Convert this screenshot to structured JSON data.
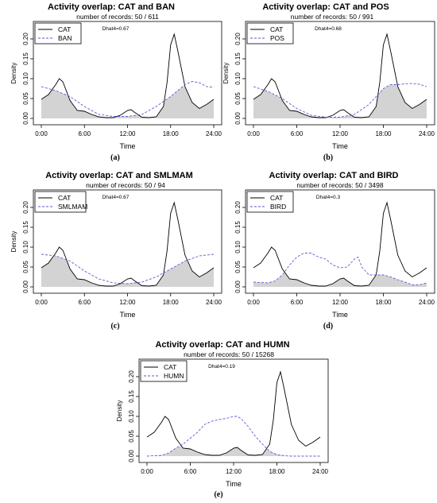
{
  "chart_data": [
    {
      "type": "area",
      "title": "Activity overlap:  CAT and BAN",
      "subtitle": "number of records: 50 / 611",
      "annotation": "Dhat4=0.67",
      "xlabel": "Time",
      "ylabel": "Density",
      "caption": "(a)",
      "x_ticks": [
        "0:00",
        "6:00",
        "12:00",
        "18:00",
        "24:00"
      ],
      "y_ticks": [
        "0.00",
        "0.05",
        "0.10",
        "0.15",
        "0.20"
      ],
      "xlim": [
        0,
        24
      ],
      "ylim": [
        0,
        0.22
      ],
      "legend": "top-left",
      "overlap_shaded": true,
      "series": [
        {
          "name": "CAT",
          "color": "#000000",
          "style": "solid",
          "x": [
            0,
            1,
            2,
            2.5,
            3,
            4,
            5,
            6,
            7,
            8,
            9,
            10,
            11,
            12,
            12.5,
            13,
            14,
            15,
            16,
            17,
            17.5,
            18,
            18.5,
            19,
            20,
            21,
            22,
            23,
            24
          ],
          "values": [
            0.048,
            0.06,
            0.085,
            0.1,
            0.092,
            0.045,
            0.02,
            0.018,
            0.01,
            0.004,
            0.002,
            0.002,
            0.008,
            0.02,
            0.022,
            0.015,
            0.003,
            0.002,
            0.004,
            0.03,
            0.09,
            0.185,
            0.212,
            0.17,
            0.08,
            0.04,
            0.025,
            0.035,
            0.048
          ]
        },
        {
          "name": "BAN",
          "color": "#5a5ad6",
          "style": "dashed",
          "x": [
            0,
            2,
            4,
            6,
            8,
            10,
            12,
            14,
            16,
            18,
            19,
            20,
            21,
            22,
            23,
            24
          ],
          "values": [
            0.08,
            0.07,
            0.055,
            0.03,
            0.01,
            0.005,
            0.005,
            0.01,
            0.03,
            0.055,
            0.07,
            0.085,
            0.093,
            0.09,
            0.08,
            0.078
          ]
        }
      ]
    },
    {
      "type": "area",
      "title": "Activity overlap:  CAT and POS",
      "subtitle": "number of records: 50 / 991",
      "annotation": "Dhat4=0.68",
      "xlabel": "Time",
      "ylabel": "Density",
      "caption": "(b)",
      "x_ticks": [
        "0:00",
        "6:00",
        "12:00",
        "18:00",
        "24:00"
      ],
      "y_ticks": [
        "0.00",
        "0.05",
        "0.10",
        "0.15",
        "0.20"
      ],
      "xlim": [
        0,
        24
      ],
      "ylim": [
        0,
        0.22
      ],
      "legend": "top-left",
      "overlap_shaded": true,
      "series": [
        {
          "name": "CAT",
          "color": "#000000",
          "style": "solid",
          "x": [
            0,
            1,
            2,
            2.5,
            3,
            4,
            5,
            6,
            7,
            8,
            9,
            10,
            11,
            12,
            12.5,
            13,
            14,
            15,
            16,
            17,
            17.5,
            18,
            18.5,
            19,
            20,
            21,
            22,
            23,
            24
          ],
          "values": [
            0.048,
            0.06,
            0.085,
            0.1,
            0.092,
            0.045,
            0.02,
            0.018,
            0.01,
            0.004,
            0.002,
            0.002,
            0.008,
            0.02,
            0.022,
            0.015,
            0.003,
            0.002,
            0.004,
            0.03,
            0.09,
            0.185,
            0.212,
            0.17,
            0.08,
            0.04,
            0.025,
            0.035,
            0.048
          ]
        },
        {
          "name": "POS",
          "color": "#5a5ad6",
          "style": "dashed",
          "x": [
            0,
            2,
            4,
            6,
            8,
            10,
            12,
            14,
            16,
            17,
            18,
            19,
            20,
            21,
            22,
            23,
            24
          ],
          "values": [
            0.08,
            0.068,
            0.05,
            0.025,
            0.008,
            0.003,
            0.003,
            0.01,
            0.035,
            0.055,
            0.075,
            0.085,
            0.085,
            0.087,
            0.088,
            0.086,
            0.08
          ]
        }
      ]
    },
    {
      "type": "area",
      "title": "Activity overlap:  CAT and SMLMAM",
      "subtitle": "number of records: 50 / 94",
      "annotation": "Dhat4=0.67",
      "xlabel": "Time",
      "ylabel": "Density",
      "caption": "(c)",
      "x_ticks": [
        "0:00",
        "6:00",
        "12:00",
        "18:00",
        "24:00"
      ],
      "y_ticks": [
        "0.00",
        "0.05",
        "0.10",
        "0.15",
        "0.20"
      ],
      "xlim": [
        0,
        24
      ],
      "ylim": [
        0,
        0.22
      ],
      "legend": "top-left",
      "overlap_shaded": true,
      "series": [
        {
          "name": "CAT",
          "color": "#000000",
          "style": "solid",
          "x": [
            0,
            1,
            2,
            2.5,
            3,
            4,
            5,
            6,
            7,
            8,
            9,
            10,
            11,
            12,
            12.5,
            13,
            14,
            15,
            16,
            17,
            17.5,
            18,
            18.5,
            19,
            20,
            21,
            22,
            23,
            24
          ],
          "values": [
            0.048,
            0.06,
            0.085,
            0.1,
            0.092,
            0.045,
            0.02,
            0.018,
            0.01,
            0.004,
            0.002,
            0.002,
            0.008,
            0.02,
            0.022,
            0.015,
            0.003,
            0.002,
            0.004,
            0.03,
            0.09,
            0.185,
            0.212,
            0.17,
            0.08,
            0.04,
            0.025,
            0.035,
            0.048
          ]
        },
        {
          "name": "SMLMAM",
          "color": "#5a5ad6",
          "style": "dashed",
          "x": [
            0,
            2,
            4,
            6,
            8,
            10,
            12,
            14,
            16,
            18,
            20,
            22,
            24
          ],
          "values": [
            0.082,
            0.078,
            0.065,
            0.04,
            0.02,
            0.01,
            0.008,
            0.012,
            0.025,
            0.045,
            0.065,
            0.078,
            0.082
          ]
        }
      ]
    },
    {
      "type": "area",
      "title": "Activity overlap:  CAT and BIRD",
      "subtitle": "number of records: 50 / 3498",
      "annotation": "Dhat4=0.3",
      "xlabel": "Time",
      "ylabel": "",
      "caption": "(d)",
      "x_ticks": [
        "0:00",
        "6:00",
        "12:00",
        "18:00",
        "24:00"
      ],
      "y_ticks": [
        "0.00",
        "0.05",
        "0.10",
        "0.15",
        "0.20"
      ],
      "xlim": [
        0,
        24
      ],
      "ylim": [
        0,
        0.22
      ],
      "legend": "top-left",
      "overlap_shaded": true,
      "series": [
        {
          "name": "CAT",
          "color": "#000000",
          "style": "solid",
          "x": [
            0,
            1,
            2,
            2.5,
            3,
            4,
            5,
            6,
            7,
            8,
            9,
            10,
            11,
            12,
            12.5,
            13,
            14,
            15,
            16,
            17,
            17.5,
            18,
            18.5,
            19,
            20,
            21,
            22,
            23,
            24
          ],
          "values": [
            0.048,
            0.06,
            0.085,
            0.1,
            0.092,
            0.045,
            0.02,
            0.018,
            0.01,
            0.004,
            0.002,
            0.002,
            0.008,
            0.02,
            0.022,
            0.015,
            0.003,
            0.002,
            0.004,
            0.03,
            0.09,
            0.185,
            0.212,
            0.17,
            0.08,
            0.04,
            0.025,
            0.035,
            0.048
          ]
        },
        {
          "name": "BIRD",
          "color": "#5a5ad6",
          "style": "dashed",
          "x": [
            0,
            2,
            3,
            4,
            5,
            6,
            7,
            8,
            9,
            10,
            11,
            12,
            13,
            14,
            14.5,
            15,
            16,
            17,
            18,
            19,
            20,
            21,
            22,
            23,
            24
          ],
          "values": [
            0.012,
            0.01,
            0.015,
            0.03,
            0.055,
            0.075,
            0.085,
            0.085,
            0.075,
            0.07,
            0.055,
            0.048,
            0.05,
            0.07,
            0.075,
            0.05,
            0.03,
            0.03,
            0.03,
            0.025,
            0.018,
            0.012,
            0.005,
            0.005,
            0.01
          ]
        }
      ]
    },
    {
      "type": "area",
      "title": "Activity overlap:  CAT and HUMN",
      "subtitle": "number of records: 50 / 15268",
      "annotation": "Dhat4=0.19",
      "xlabel": "Time",
      "ylabel": "Density",
      "caption": "(e)",
      "x_ticks": [
        "0:00",
        "6:00",
        "12:00",
        "18:00",
        "24:00"
      ],
      "y_ticks": [
        "0.00",
        "0.05",
        "0.10",
        "0.15",
        "0.20"
      ],
      "xlim": [
        0,
        24
      ],
      "ylim": [
        0,
        0.22
      ],
      "legend": "top-left",
      "overlap_shaded": true,
      "series": [
        {
          "name": "CAT",
          "color": "#000000",
          "style": "solid",
          "x": [
            0,
            1,
            2,
            2.5,
            3,
            4,
            5,
            6,
            7,
            8,
            9,
            10,
            11,
            12,
            12.5,
            13,
            14,
            15,
            16,
            17,
            17.5,
            18,
            18.5,
            19,
            20,
            21,
            22,
            23,
            24
          ],
          "values": [
            0.048,
            0.06,
            0.085,
            0.1,
            0.092,
            0.045,
            0.02,
            0.018,
            0.01,
            0.004,
            0.002,
            0.002,
            0.008,
            0.02,
            0.022,
            0.015,
            0.003,
            0.002,
            0.004,
            0.03,
            0.09,
            0.185,
            0.212,
            0.17,
            0.08,
            0.04,
            0.025,
            0.035,
            0.048
          ]
        },
        {
          "name": "HUMN",
          "color": "#5a5ad6",
          "style": "dashed",
          "x": [
            0,
            2,
            3,
            4,
            5,
            6,
            7,
            8,
            9,
            10,
            11,
            12,
            12.5,
            13,
            14,
            15,
            16,
            17,
            18,
            19,
            20,
            22,
            24
          ],
          "values": [
            0.0,
            0.002,
            0.008,
            0.02,
            0.03,
            0.045,
            0.06,
            0.08,
            0.088,
            0.092,
            0.095,
            0.1,
            0.1,
            0.095,
            0.075,
            0.05,
            0.03,
            0.012,
            0.004,
            0.001,
            0.0,
            0.0,
            0.0
          ]
        }
      ]
    }
  ]
}
